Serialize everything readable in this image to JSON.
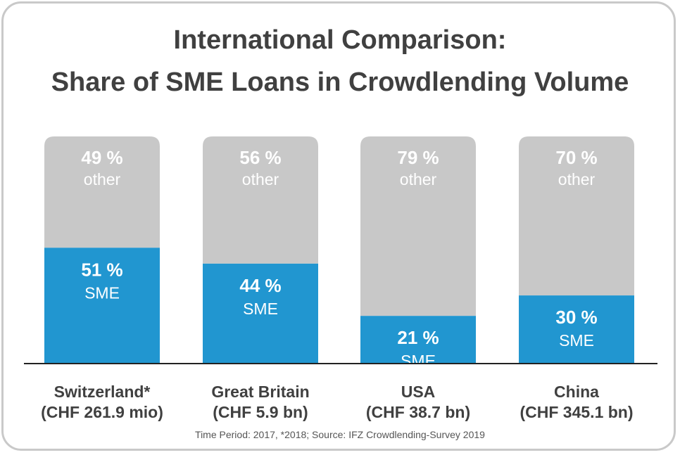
{
  "chart_data": {
    "type": "bar",
    "stacked": true,
    "title_line1": "International Comparison:",
    "title_line2": "Share of SME Loans in Crowdlending Volume",
    "categories": [
      {
        "name": "Switzerland*",
        "volume": "(CHF 261.9 mio)"
      },
      {
        "name": "Great Britain",
        "volume": "(CHF 5.9 bn)"
      },
      {
        "name": "USA",
        "volume": "(CHF 38.7 bn)"
      },
      {
        "name": "China",
        "volume": "(CHF 345.1 bn)"
      }
    ],
    "series": [
      {
        "name": "SME",
        "values": [
          51,
          44,
          21,
          30
        ],
        "labels": [
          "51 %",
          "44 %",
          "21 %",
          "30 %"
        ],
        "color": "#2196d0"
      },
      {
        "name": "other",
        "values": [
          49,
          56,
          79,
          70
        ],
        "labels": [
          "49 %",
          "56 %",
          "79 %",
          "70 %"
        ],
        "color": "#c8c8c8"
      }
    ],
    "ylim": [
      0,
      100
    ],
    "source": "Time Period: 2017, *2018; Source: IFZ Crowdlending-Survey 2019"
  }
}
